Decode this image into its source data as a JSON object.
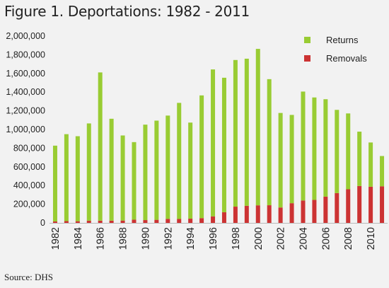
{
  "title": "Figure 1. Deportations: 1982 - 2011",
  "source": "Source: DHS",
  "colors": {
    "returns": "#99cc33",
    "removals": "#cc3333",
    "background": "#f2f2f2"
  },
  "chart_data": {
    "type": "bar",
    "stacked": true,
    "title": "Figure 1. Deportations: 1982 - 2011",
    "xlabel": "",
    "ylabel": "",
    "ylim": [
      0,
      2000000
    ],
    "yticks": [
      "0",
      "200,000",
      "400,000",
      "600,000",
      "800,000",
      "1,000,000",
      "1,200,000",
      "1,400,000",
      "1,600,000",
      "1,800,000",
      "2,000,000"
    ],
    "ytick_values": [
      0,
      200000,
      400000,
      600000,
      800000,
      1000000,
      1200000,
      1400000,
      1600000,
      1800000,
      2000000
    ],
    "grid": false,
    "legend": "top-right",
    "categories": [
      1982,
      1983,
      1984,
      1985,
      1986,
      1987,
      1988,
      1989,
      1990,
      1991,
      1992,
      1993,
      1994,
      1995,
      1996,
      1997,
      1998,
      1999,
      2000,
      2001,
      2002,
      2003,
      2004,
      2005,
      2006,
      2007,
      2008,
      2009,
      2010,
      2011
    ],
    "xtick_labels": [
      "1982",
      "1984",
      "1986",
      "1988",
      "1990",
      "1992",
      "1994",
      "1996",
      "1998",
      "2000",
      "2002",
      "2004",
      "2006",
      "2008",
      "2010"
    ],
    "series": [
      {
        "name": "Removals",
        "values": [
          15000,
          19000,
          18000,
          24000,
          24000,
          24000,
          25000,
          34000,
          30000,
          33000,
          43000,
          42000,
          45000,
          51000,
          70000,
          114000,
          174000,
          183000,
          188000,
          189000,
          165000,
          211000,
          240000,
          246000,
          281000,
          319000,
          360000,
          395000,
          387000,
          392000
        ]
      },
      {
        "name": "Returns",
        "values": [
          812000,
          931000,
          910000,
          1041000,
          1587000,
          1091000,
          911000,
          831000,
          1022000,
          1062000,
          1106000,
          1243000,
          1029000,
          1314000,
          1573000,
          1440000,
          1570000,
          1575000,
          1675000,
          1350000,
          1012000,
          945000,
          1166000,
          1097000,
          1043000,
          891000,
          812000,
          582000,
          474000,
          324000
        ]
      }
    ]
  }
}
